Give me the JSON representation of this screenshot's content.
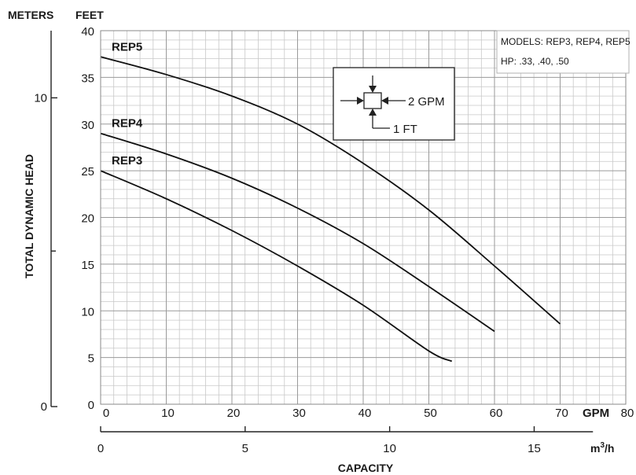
{
  "chart_data": {
    "type": "line",
    "title": "",
    "left_axis_meters": {
      "label": "METERS",
      "ticks": [
        0,
        10
      ]
    },
    "y_axis": {
      "label": "FEET",
      "range": [
        0,
        40
      ],
      "ticks": [
        0,
        5,
        10,
        15,
        20,
        25,
        30,
        35,
        40
      ]
    },
    "y_title": "TOTAL DYNAMIC HEAD",
    "x_axis": {
      "unit_label": "GPM",
      "range": [
        0,
        80
      ],
      "ticks": [
        0,
        10,
        20,
        30,
        40,
        50,
        60,
        70,
        80
      ]
    },
    "x_axis_secondary": {
      "unit_label": "m³/h",
      "unit_base": "m",
      "unit_sup": "3",
      "unit_rest": "/h",
      "ticks": [
        0,
        5,
        10,
        15
      ]
    },
    "x_title": "CAPACITY",
    "grid": true,
    "info_box": {
      "models": "MODELS: REP3, REP4, REP5",
      "hp": "HP: .33, .40, .50"
    },
    "legend_box": {
      "gpm": "2 GPM",
      "ft": "1 FT"
    },
    "series": [
      {
        "name": "REP5",
        "points": [
          [
            0,
            37.2
          ],
          [
            10,
            35.3
          ],
          [
            20,
            33.0
          ],
          [
            30,
            30.0
          ],
          [
            40,
            25.8
          ],
          [
            50,
            20.8
          ],
          [
            60,
            14.8
          ],
          [
            70,
            8.6
          ]
        ]
      },
      {
        "name": "REP4",
        "points": [
          [
            0,
            29.0
          ],
          [
            10,
            26.8
          ],
          [
            20,
            24.2
          ],
          [
            30,
            21.0
          ],
          [
            40,
            17.2
          ],
          [
            50,
            12.6
          ],
          [
            60,
            7.8
          ]
        ]
      },
      {
        "name": "REP3",
        "points": [
          [
            0,
            25.0
          ],
          [
            10,
            22.0
          ],
          [
            20,
            18.6
          ],
          [
            30,
            14.8
          ],
          [
            40,
            10.6
          ],
          [
            50,
            5.7
          ],
          [
            53.5,
            4.6
          ]
        ]
      }
    ]
  }
}
